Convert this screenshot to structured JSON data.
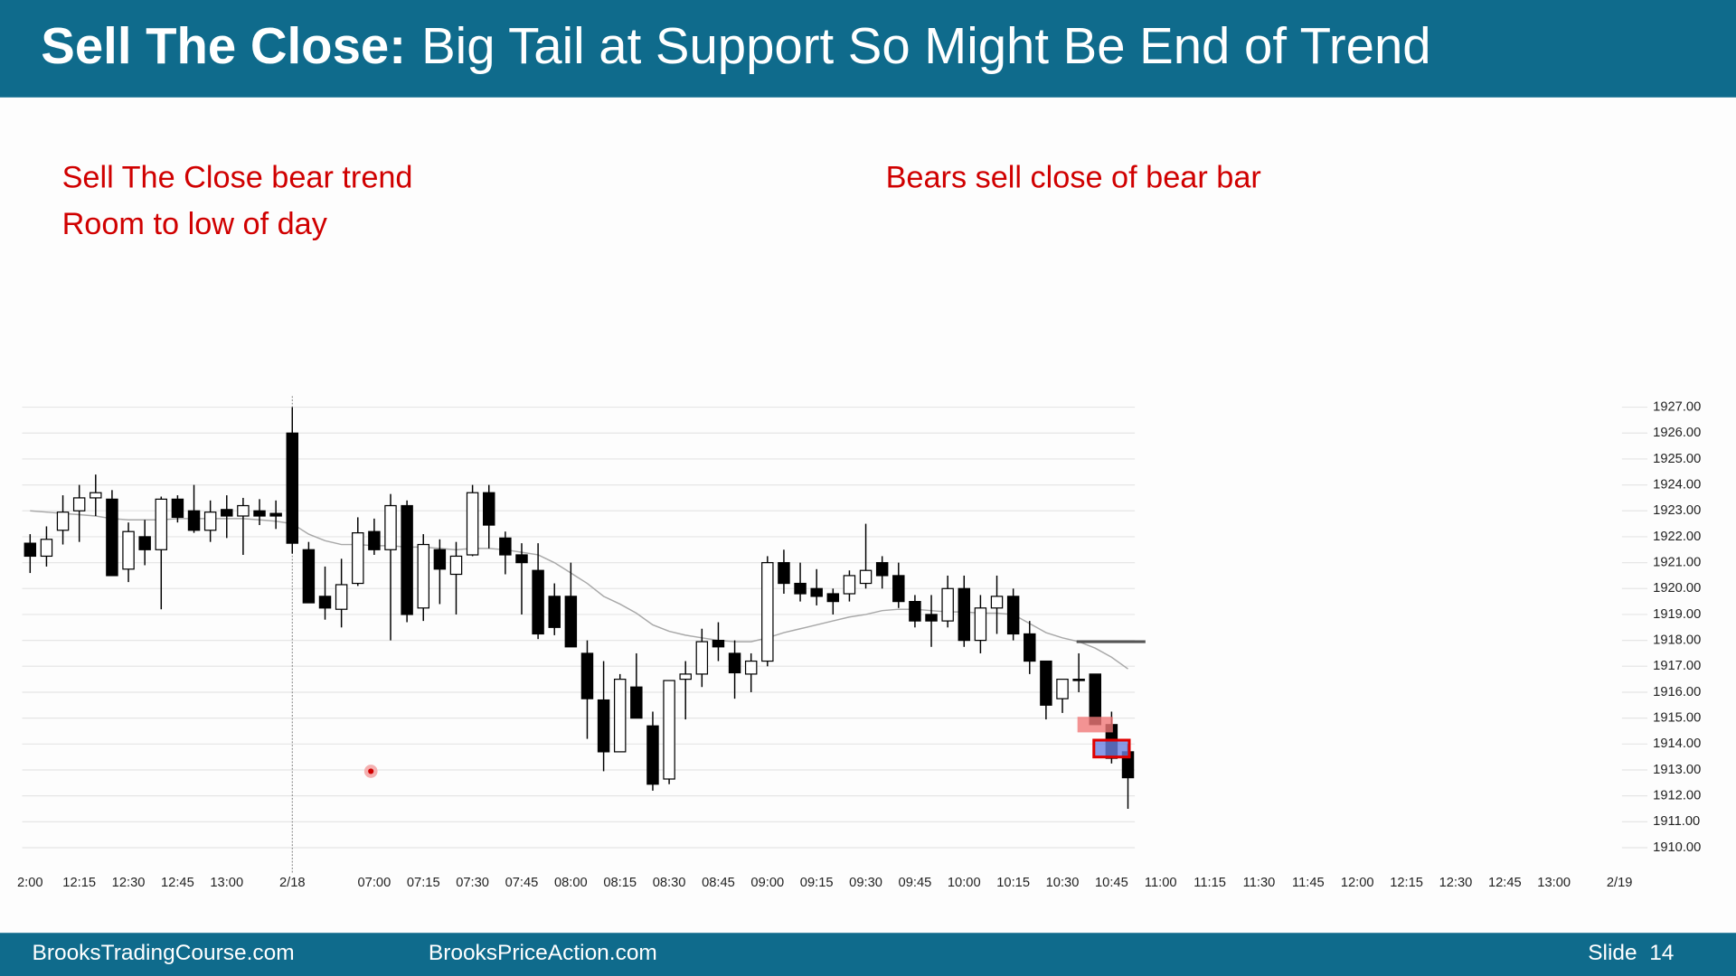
{
  "header": {
    "title_bold": "Sell The Close:",
    "title_rest": "Big Tail at Support So Might Be End of Trend"
  },
  "annotations": [
    "Sell The Close bear trend",
    "Room to low of day",
    "Bears sell close of bear bar"
  ],
  "footer": {
    "left": "BrooksTradingCourse.com",
    "center": "BrooksPriceAction.com",
    "slide": "Slide  14"
  },
  "chart_data": {
    "type": "candlestick",
    "categories": [
      "2:00",
      null,
      null,
      "12:15",
      null,
      null,
      "12:30",
      null,
      null,
      "12:45",
      null,
      null,
      "13:00",
      null,
      null,
      null,
      "2/18",
      null,
      null,
      null,
      null,
      "07:00",
      null,
      null,
      "07:15",
      null,
      null,
      "07:30",
      null,
      null,
      "07:45",
      null,
      null,
      "08:00",
      null,
      null,
      "08:15",
      null,
      null,
      "08:30",
      null,
      null,
      "08:45",
      null,
      null,
      "09:00",
      null,
      null,
      "09:15",
      null,
      null,
      "09:30",
      null,
      null,
      "09:45",
      null,
      null,
      "10:00",
      null,
      null,
      "10:15",
      null,
      null,
      "10:30",
      null,
      null,
      "10:45",
      null,
      null,
      "11:00",
      null,
      null,
      "11:15",
      null,
      null,
      "11:30",
      null,
      null,
      "11:45",
      null,
      null,
      "12:00",
      null,
      null,
      "12:15",
      null,
      null,
      "12:30",
      null,
      null,
      "12:45",
      null,
      null,
      "13:00",
      null,
      null,
      null,
      "2/19"
    ],
    "open": [
      1921.75,
      1921.25,
      1922.25,
      1923.0,
      1923.5,
      1923.45,
      1920.75,
      1922.0,
      1921.5,
      1923.45,
      1923.0,
      1922.25,
      1923.05,
      1922.8,
      1923.0,
      1922.9,
      1926.0,
      1921.5,
      1919.7,
      1919.2,
      1920.2,
      1922.2,
      1921.5,
      1923.2,
      1919.25,
      1921.5,
      1920.55,
      1921.3,
      1923.7,
      1921.95,
      1921.3,
      1920.7,
      1919.7,
      1919.7,
      1917.5,
      1915.7,
      1913.7,
      1916.2,
      1914.7,
      1912.65,
      1916.5,
      1916.7,
      1918.0,
      1917.5,
      1916.7,
      1917.2,
      1921.0,
      1920.2,
      1920.0,
      1919.8,
      1919.8,
      1920.2,
      1921.0,
      1920.5,
      1919.5,
      1919.0,
      1918.75,
      1920.0,
      1918.0,
      1919.25,
      1919.7,
      1918.25,
      1917.2,
      1915.75,
      1916.5,
      1916.7,
      1914.75,
      1913.7,
      null,
      null,
      null,
      null,
      null,
      null,
      null,
      null,
      null,
      null,
      null,
      null,
      null,
      null,
      null,
      null,
      null,
      null,
      null,
      null,
      null,
      null,
      null,
      null,
      null,
      null,
      null,
      null,
      null,
      null
    ],
    "high": [
      1922.1,
      1922.4,
      1923.6,
      1924.0,
      1924.4,
      1923.8,
      1922.55,
      1922.65,
      1923.55,
      1923.6,
      1924.0,
      1923.4,
      1923.6,
      1923.5,
      1923.45,
      1923.4,
      1927.0,
      1921.8,
      1920.85,
      1921.15,
      1922.75,
      1922.7,
      1923.65,
      1923.4,
      1922.1,
      1921.9,
      1921.8,
      1924.0,
      1924.0,
      1922.2,
      1921.75,
      1921.75,
      1920.2,
      1921.0,
      1918.0,
      1917.2,
      1916.7,
      1917.5,
      1915.25,
      1916.45,
      1917.2,
      1918.45,
      1918.7,
      1918.0,
      1917.5,
      1921.25,
      1921.5,
      1921.0,
      1920.75,
      1920.0,
      1920.7,
      1922.5,
      1921.25,
      1921.0,
      1919.75,
      1919.75,
      1920.5,
      1920.5,
      1919.75,
      1920.5,
      1920.0,
      1918.75,
      1917.2,
      1916.5,
      1917.5,
      1916.7,
      1915.25,
      1914.0,
      null,
      null,
      null,
      null,
      null,
      null,
      null,
      null,
      null,
      null,
      null,
      null,
      null,
      null,
      null,
      null,
      null,
      null,
      null,
      null,
      null,
      null,
      null,
      null,
      null,
      null,
      null,
      null,
      null,
      null
    ],
    "low": [
      1920.6,
      1920.85,
      1921.7,
      1921.8,
      1922.8,
      1920.5,
      1920.25,
      1920.9,
      1919.2,
      1922.55,
      1922.15,
      1921.8,
      1921.95,
      1921.3,
      1922.45,
      1922.3,
      1921.35,
      1919.45,
      1918.8,
      1918.5,
      1920.1,
      1921.3,
      1918.0,
      1918.7,
      1918.75,
      1919.4,
      1919.0,
      1921.25,
      1921.55,
      1920.55,
      1919.0,
      1918.05,
      1918.2,
      1917.75,
      1914.2,
      1912.95,
      1913.7,
      1915.0,
      1912.2,
      1912.45,
      1914.95,
      1916.2,
      1917.2,
      1915.75,
      1916.0,
      1917.0,
      1919.8,
      1919.5,
      1919.35,
      1919.0,
      1919.5,
      1920.0,
      1920.0,
      1919.25,
      1918.5,
      1917.75,
      1918.5,
      1917.75,
      1917.5,
      1918.25,
      1918.0,
      1916.7,
      1914.95,
      1915.2,
      1916.0,
      1914.75,
      1913.25,
      1911.5,
      null,
      null,
      null,
      null,
      null,
      null,
      null,
      null,
      null,
      null,
      null,
      null,
      null,
      null,
      null,
      null,
      null,
      null,
      null,
      null,
      null,
      null,
      null,
      null,
      null,
      null,
      null,
      null,
      null,
      null
    ],
    "close": [
      1921.25,
      1921.9,
      1922.95,
      1923.5,
      1923.7,
      1920.5,
      1922.2,
      1921.5,
      1923.45,
      1922.75,
      1922.25,
      1922.95,
      1922.8,
      1923.2,
      1922.8,
      1922.8,
      1921.75,
      1919.45,
      1919.25,
      1920.15,
      1922.15,
      1921.5,
      1923.2,
      1919.0,
      1921.7,
      1920.75,
      1921.25,
      1923.7,
      1922.45,
      1921.3,
      1921.0,
      1918.25,
      1918.5,
      1917.75,
      1915.75,
      1913.7,
      1916.5,
      1915.0,
      1912.45,
      1916.45,
      1916.7,
      1917.95,
      1917.75,
      1916.75,
      1917.2,
      1921.0,
      1920.2,
      1919.8,
      1919.7,
      1919.5,
      1920.5,
      1920.7,
      1920.5,
      1919.5,
      1918.75,
      1918.75,
      1920.0,
      1918.0,
      1919.25,
      1919.7,
      1918.25,
      1917.2,
      1915.5,
      1916.5,
      1916.45,
      1914.75,
      1913.45,
      1912.7,
      null,
      null,
      null,
      null,
      null,
      null,
      null,
      null,
      null,
      null,
      null,
      null,
      null,
      null,
      null,
      null,
      null,
      null,
      null,
      null,
      null,
      null,
      null,
      null,
      null,
      null,
      null,
      null,
      null,
      null
    ],
    "moving_average": {
      "color": "#a8a8a8",
      "values": [
        1923.0,
        1922.95,
        1922.9,
        1922.85,
        1922.8,
        1922.7,
        1922.65,
        1922.65,
        1922.65,
        1922.7,
        1922.7,
        1922.7,
        1922.7,
        1922.7,
        1922.65,
        1922.6,
        1922.5,
        1922.1,
        1921.85,
        1921.7,
        1921.7,
        1921.65,
        1921.65,
        1921.6,
        1921.6,
        1921.55,
        1921.5,
        1921.55,
        1921.55,
        1921.5,
        1921.4,
        1921.3,
        1921.0,
        1920.6,
        1920.2,
        1919.7,
        1919.4,
        1919.05,
        1918.6,
        1918.35,
        1918.2,
        1918.1,
        1918.0,
        1917.95,
        1917.95,
        1918.1,
        1918.3,
        1918.45,
        1918.6,
        1918.75,
        1918.9,
        1919.0,
        1919.15,
        1919.2,
        1919.2,
        1919.15,
        1919.1,
        1919.1,
        1919.05,
        1919.05,
        1919.0,
        1918.65,
        1918.3,
        1918.1,
        1917.95,
        1917.7,
        1917.35,
        1916.9,
        null,
        null,
        null,
        null,
        null,
        null,
        null,
        null,
        null,
        null,
        null,
        null,
        null,
        null,
        null,
        null,
        null,
        null,
        null,
        null,
        null,
        null,
        null,
        null,
        null,
        null,
        null,
        null,
        null,
        null
      ]
    },
    "level_line": {
      "value": 1917.95,
      "from": 64,
      "to": 68,
      "color": "#555555"
    },
    "highlights": [
      {
        "index": 65,
        "low": 1914.45,
        "high": 1915.05,
        "color": "#f07878"
      },
      {
        "index": 66,
        "low": 1913.5,
        "high": 1914.15,
        "color": "#6a7fe0",
        "border": "#e00000"
      }
    ],
    "up_color": "#ffffff",
    "down_color": "#000000",
    "grid": true,
    "ylim": [
      1909.6,
      1927.4
    ],
    "yticks": [
      {
        "value": 1910,
        "label": "1910.00"
      },
      {
        "value": 1911,
        "label": "1911.00"
      },
      {
        "value": 1912,
        "label": "1912.00"
      },
      {
        "value": 1913,
        "label": "1913.00"
      },
      {
        "value": 1914,
        "label": "1914.00"
      },
      {
        "value": 1915,
        "label": "1915.00"
      },
      {
        "value": 1916,
        "label": "1916.00"
      },
      {
        "value": 1917,
        "label": "1917.00"
      },
      {
        "value": 1918,
        "label": "1918.00"
      },
      {
        "value": 1919,
        "label": "1919.00"
      },
      {
        "value": 1920,
        "label": "1920.00"
      },
      {
        "value": 1921,
        "label": "1921.00"
      },
      {
        "value": 1922,
        "label": "1922.00"
      },
      {
        "value": 1923,
        "label": "1923.00"
      },
      {
        "value": 1924,
        "label": "1924.00"
      },
      {
        "value": 1925,
        "label": "1925.00"
      },
      {
        "value": 1926,
        "label": "1926.00"
      },
      {
        "value": 1927,
        "label": "1927.00"
      }
    ]
  }
}
